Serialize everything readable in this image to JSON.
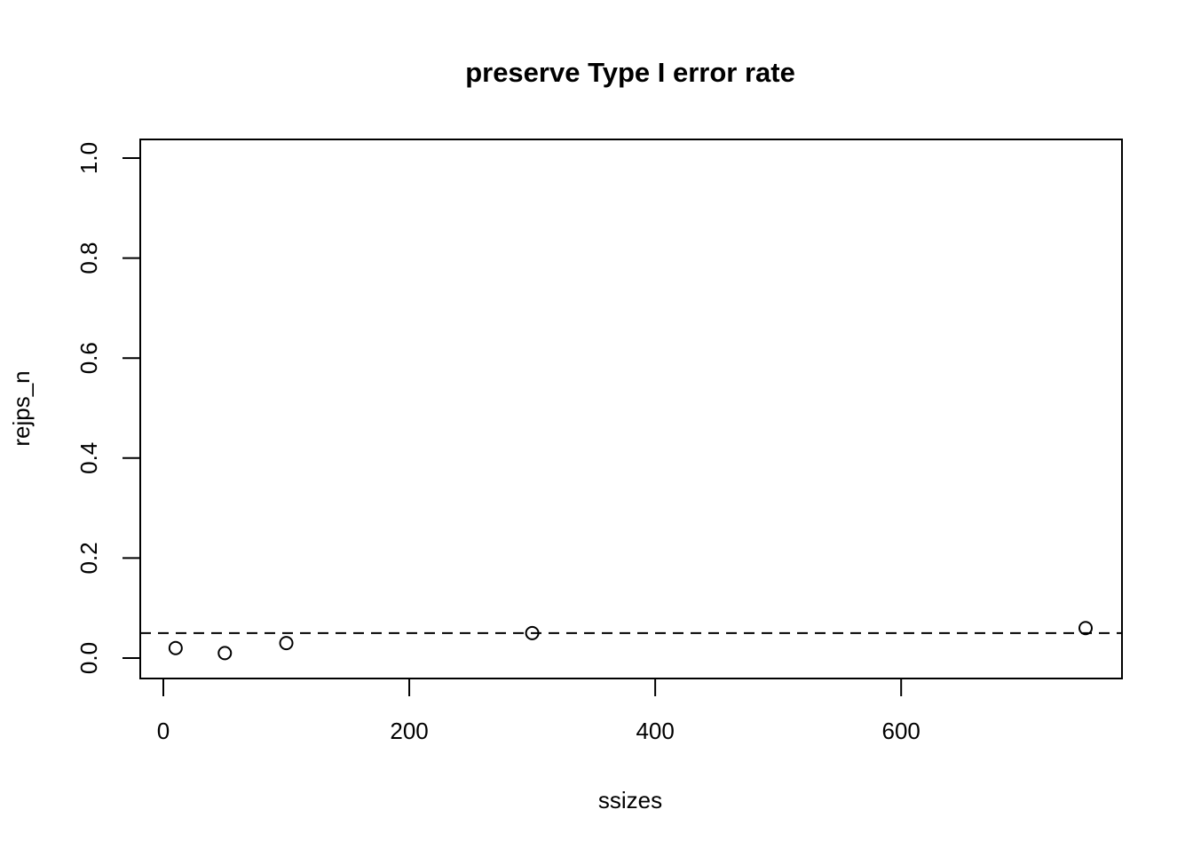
{
  "chart_data": {
    "type": "scatter",
    "title": "preserve Type I error rate",
    "xlabel": "ssizes",
    "ylabel": "rejps_n",
    "xlim": [
      0,
      750
    ],
    "ylim": [
      0,
      1
    ],
    "x_ticks": [
      0,
      200,
      400,
      600
    ],
    "x_tick_labels": [
      "0",
      "200",
      "400",
      "600"
    ],
    "y_ticks": [
      0,
      0.2,
      0.4,
      0.6,
      0.8,
      1
    ],
    "y_tick_labels": [
      "0.0",
      "0.2",
      "0.4",
      "0.6",
      "0.8",
      "1.0"
    ],
    "grid": false,
    "legend": "none",
    "points": [
      {
        "x": 10,
        "y": 0.02
      },
      {
        "x": 50,
        "y": 0.01
      },
      {
        "x": 100,
        "y": 0.03
      },
      {
        "x": 300,
        "y": 0.05
      },
      {
        "x": 750,
        "y": 0.06
      }
    ],
    "reference_lines": [
      {
        "orientation": "horizontal",
        "y": 0.05,
        "style": "dashed"
      }
    ],
    "colors": {
      "points": "#000000",
      "frame": "#000000",
      "reference_line": "#000000"
    }
  }
}
